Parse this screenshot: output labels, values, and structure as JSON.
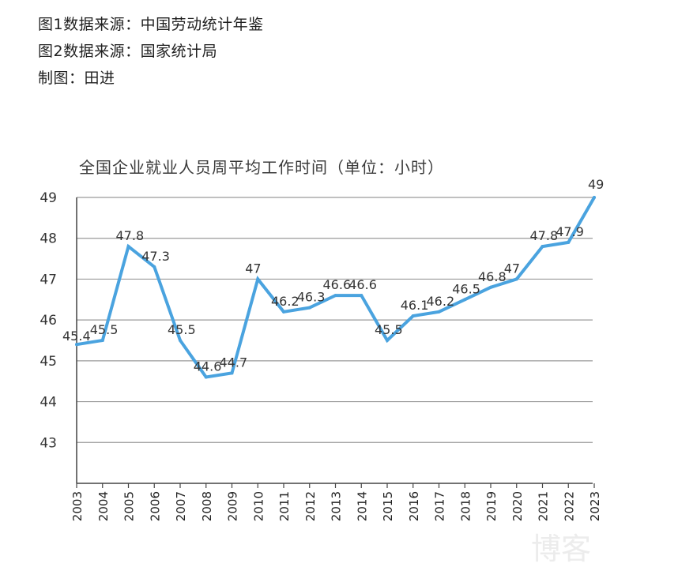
{
  "notes": {
    "line1": "图1数据来源：中国劳动统计年鉴",
    "line2": "图2数据来源：国家统计局",
    "line3": "制图：田进"
  },
  "watermark": "博客",
  "chart_data": {
    "type": "line",
    "title": "全国企业就业人员周平均工作时间（单位：小时）",
    "xlabel": "",
    "ylabel": "",
    "categories": [
      "2003",
      "2004",
      "2005",
      "2006",
      "2007",
      "2008",
      "2009",
      "2010",
      "2011",
      "2012",
      "2013",
      "2014",
      "2015",
      "2016",
      "2017",
      "2018",
      "2019",
      "2020",
      "2021",
      "2022",
      "2023"
    ],
    "values": [
      45.4,
      45.5,
      47.8,
      47.3,
      45.5,
      44.6,
      44.7,
      47,
      46.2,
      46.3,
      46.6,
      46.6,
      45.5,
      46.1,
      46.2,
      46.5,
      46.8,
      47,
      47.8,
      47.9,
      49
    ],
    "data_labels": [
      "45.4",
      "45.5",
      "47.8",
      "47.3",
      "45.5",
      "44.6",
      "44.7",
      "47",
      "46.2",
      "46.3",
      "46.6",
      "46.6",
      "45.5",
      "46.1",
      "46.2",
      "46.5",
      "46.8",
      "47",
      "47.8",
      "47.9",
      "49"
    ],
    "y_ticks": [
      43,
      44,
      45,
      46,
      47,
      48,
      49
    ],
    "ylim": [
      42,
      49
    ],
    "grid": true,
    "line_color": "#4aa3df",
    "grid_color": "#9a9a9a",
    "axis_color": "#444444"
  }
}
